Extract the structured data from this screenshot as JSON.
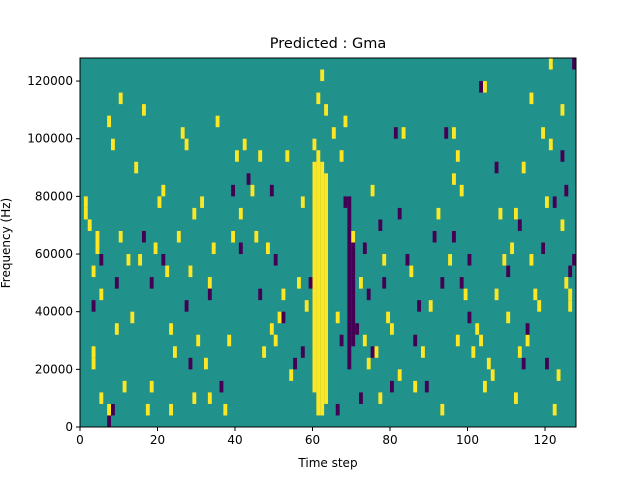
{
  "chart_data": {
    "type": "heatmap",
    "title": "Predicted : Gma",
    "xlabel": "Time step",
    "ylabel": "Frequency (Hz)",
    "xlim": [
      0,
      128
    ],
    "ylim": [
      0,
      128000
    ],
    "x_ticks": [
      0,
      20,
      40,
      60,
      80,
      100,
      120
    ],
    "x_tick_labels": [
      "0",
      "20",
      "40",
      "60",
      "80",
      "100",
      "120"
    ],
    "y_ticks": [
      0,
      20000,
      40000,
      60000,
      80000,
      100000,
      120000
    ],
    "y_tick_labels": [
      "0",
      "20000",
      "40000",
      "60000",
      "80000",
      "100000",
      "120000"
    ],
    "grid": false,
    "colormap": "viridis",
    "background_level": 0.5,
    "colors": {
      "low": "#440154",
      "mid": "#21918c",
      "high": "#fde725"
    },
    "bin_count_frequency": 32,
    "dense_high_columns": [
      {
        "time": 60,
        "freq_range": [
          12000,
          92000
        ]
      },
      {
        "time": 61,
        "freq_range": [
          4000,
          96000
        ]
      },
      {
        "time": 62,
        "freq_range": [
          4000,
          92000
        ]
      },
      {
        "time": 63,
        "freq_range": [
          8000,
          88000
        ]
      }
    ],
    "dense_low_columns": [
      {
        "time": 69,
        "freq_range": [
          20000,
          80000
        ]
      },
      {
        "time": 70,
        "freq_range": [
          28000,
          68000
        ]
      }
    ],
    "high_cells": [
      [
        1,
        72000
      ],
      [
        1,
        76000
      ],
      [
        2,
        68000
      ],
      [
        3,
        52000
      ],
      [
        3,
        24000
      ],
      [
        3,
        20000
      ],
      [
        4,
        60000
      ],
      [
        4,
        64000
      ],
      [
        5,
        44000
      ],
      [
        5,
        8000
      ],
      [
        7,
        4000
      ],
      [
        7,
        104000
      ],
      [
        8,
        96000
      ],
      [
        9,
        32000
      ],
      [
        10,
        64000
      ],
      [
        10,
        112000
      ],
      [
        11,
        12000
      ],
      [
        12,
        56000
      ],
      [
        13,
        36000
      ],
      [
        14,
        88000
      ],
      [
        15,
        56000
      ],
      [
        16,
        108000
      ],
      [
        17,
        4000
      ],
      [
        18,
        12000
      ],
      [
        19,
        60000
      ],
      [
        20,
        76000
      ],
      [
        21,
        80000
      ],
      [
        22,
        52000
      ],
      [
        23,
        4000
      ],
      [
        23,
        32000
      ],
      [
        24,
        24000
      ],
      [
        25,
        64000
      ],
      [
        26,
        100000
      ],
      [
        27,
        96000
      ],
      [
        28,
        52000
      ],
      [
        29,
        8000
      ],
      [
        29,
        72000
      ],
      [
        30,
        28000
      ],
      [
        31,
        76000
      ],
      [
        32,
        20000
      ],
      [
        33,
        8000
      ],
      [
        33,
        48000
      ],
      [
        34,
        60000
      ],
      [
        35,
        104000
      ],
      [
        37,
        4000
      ],
      [
        38,
        28000
      ],
      [
        39,
        64000
      ],
      [
        40,
        92000
      ],
      [
        41,
        72000
      ],
      [
        42,
        96000
      ],
      [
        44,
        80000
      ],
      [
        45,
        64000
      ],
      [
        46,
        92000
      ],
      [
        47,
        24000
      ],
      [
        48,
        60000
      ],
      [
        49,
        32000
      ],
      [
        50,
        28000
      ],
      [
        51,
        36000
      ],
      [
        52,
        44000
      ],
      [
        53,
        92000
      ],
      [
        54,
        16000
      ],
      [
        56,
        48000
      ],
      [
        57,
        76000
      ],
      [
        58,
        40000
      ],
      [
        60,
        96000
      ],
      [
        61,
        112000
      ],
      [
        62,
        120000
      ],
      [
        63,
        108000
      ],
      [
        65,
        100000
      ],
      [
        66,
        36000
      ],
      [
        67,
        92000
      ],
      [
        68,
        104000
      ],
      [
        70,
        64000
      ],
      [
        72,
        48000
      ],
      [
        73,
        28000
      ],
      [
        74,
        20000
      ],
      [
        75,
        80000
      ],
      [
        76,
        24000
      ],
      [
        77,
        8000
      ],
      [
        78,
        56000
      ],
      [
        79,
        36000
      ],
      [
        80,
        32000
      ],
      [
        82,
        16000
      ],
      [
        83,
        100000
      ],
      [
        85,
        52000
      ],
      [
        86,
        12000
      ],
      [
        88,
        24000
      ],
      [
        90,
        40000
      ],
      [
        92,
        72000
      ],
      [
        93,
        4000
      ],
      [
        95,
        56000
      ],
      [
        96,
        100000
      ],
      [
        97,
        28000
      ],
      [
        98,
        80000
      ],
      [
        99,
        44000
      ],
      [
        101,
        24000
      ],
      [
        102,
        32000
      ],
      [
        103,
        28000
      ],
      [
        104,
        12000
      ],
      [
        105,
        20000
      ],
      [
        106,
        16000
      ],
      [
        107,
        44000
      ],
      [
        108,
        72000
      ],
      [
        109,
        56000
      ],
      [
        110,
        36000
      ],
      [
        111,
        60000
      ],
      [
        112,
        8000
      ],
      [
        113,
        24000
      ],
      [
        115,
        28000
      ],
      [
        116,
        56000
      ],
      [
        117,
        44000
      ],
      [
        118,
        40000
      ],
      [
        119,
        60000
      ],
      [
        120,
        76000
      ],
      [
        121,
        96000
      ],
      [
        122,
        4000
      ],
      [
        123,
        16000
      ],
      [
        124,
        68000
      ],
      [
        125,
        48000
      ],
      [
        126,
        40000
      ],
      [
        96,
        84000
      ],
      [
        97,
        92000
      ],
      [
        104,
        116000
      ],
      [
        112,
        72000
      ],
      [
        114,
        88000
      ],
      [
        116,
        112000
      ],
      [
        119,
        100000
      ],
      [
        121,
        124000
      ],
      [
        124,
        108000
      ],
      [
        126,
        44000
      ]
    ],
    "low_cells": [
      [
        3,
        40000
      ],
      [
        5,
        56000
      ],
      [
        7,
        0
      ],
      [
        8,
        4000
      ],
      [
        9,
        48000
      ],
      [
        16,
        64000
      ],
      [
        18,
        48000
      ],
      [
        21,
        56000
      ],
      [
        27,
        40000
      ],
      [
        28,
        20000
      ],
      [
        33,
        44000
      ],
      [
        36,
        12000
      ],
      [
        39,
        80000
      ],
      [
        41,
        60000
      ],
      [
        43,
        84000
      ],
      [
        46,
        44000
      ],
      [
        49,
        80000
      ],
      [
        50,
        56000
      ],
      [
        52,
        36000
      ],
      [
        55,
        20000
      ],
      [
        57,
        24000
      ],
      [
        59,
        48000
      ],
      [
        66,
        4000
      ],
      [
        67,
        28000
      ],
      [
        68,
        76000
      ],
      [
        71,
        32000
      ],
      [
        72,
        8000
      ],
      [
        73,
        60000
      ],
      [
        74,
        44000
      ],
      [
        75,
        24000
      ],
      [
        77,
        68000
      ],
      [
        78,
        48000
      ],
      [
        80,
        12000
      ],
      [
        81,
        100000
      ],
      [
        82,
        72000
      ],
      [
        84,
        56000
      ],
      [
        86,
        28000
      ],
      [
        87,
        40000
      ],
      [
        89,
        12000
      ],
      [
        91,
        64000
      ],
      [
        93,
        48000
      ],
      [
        94,
        100000
      ],
      [
        96,
        64000
      ],
      [
        98,
        48000
      ],
      [
        100,
        56000
      ],
      [
        103,
        116000
      ],
      [
        107,
        88000
      ],
      [
        110,
        52000
      ],
      [
        113,
        68000
      ],
      [
        114,
        20000
      ],
      [
        119,
        60000
      ],
      [
        124,
        92000
      ],
      [
        126,
        52000
      ],
      [
        127,
        56000
      ],
      [
        127,
        124000
      ],
      [
        115,
        32000
      ],
      [
        120,
        20000
      ],
      [
        125,
        80000
      ],
      [
        122,
        76000
      ],
      [
        100,
        36000
      ]
    ]
  }
}
